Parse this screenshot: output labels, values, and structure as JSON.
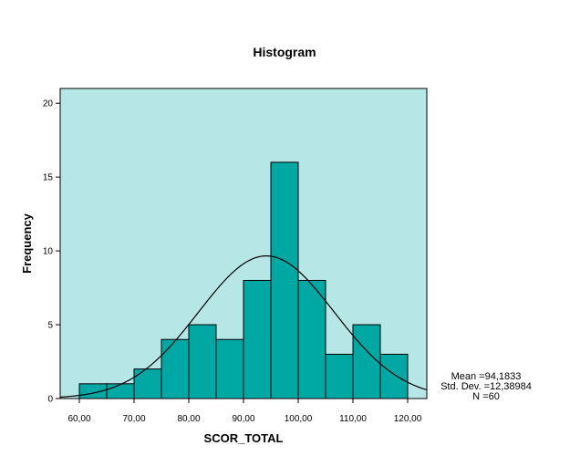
{
  "chart_data": {
    "type": "bar",
    "title": "Histogram",
    "xlabel": "SCOR_TOTAL",
    "ylabel": "Frequency",
    "bin_width": 5,
    "bin_starts": [
      60,
      65,
      70,
      75,
      80,
      85,
      90,
      95,
      100,
      105,
      110,
      115
    ],
    "values": [
      1,
      1,
      2,
      4,
      5,
      4,
      8,
      16,
      8,
      3,
      5,
      3
    ],
    "xlim": [
      56.5,
      123.5
    ],
    "ylim": [
      0,
      21
    ],
    "x_ticks": [
      {
        "value": 60,
        "label": "60,00"
      },
      {
        "value": 70,
        "label": "70,00"
      },
      {
        "value": 80,
        "label": "80,00"
      },
      {
        "value": 90,
        "label": "90,00"
      },
      {
        "value": 100,
        "label": "100,00"
      },
      {
        "value": 110,
        "label": "110,00"
      },
      {
        "value": 120,
        "label": "120,00"
      }
    ],
    "y_ticks": [
      {
        "value": 0,
        "label": "0"
      },
      {
        "value": 5,
        "label": "5"
      },
      {
        "value": 10,
        "label": "10"
      },
      {
        "value": 15,
        "label": "15"
      },
      {
        "value": 20,
        "label": "20"
      }
    ],
    "normal_curve": {
      "mean": 94.1833,
      "std": 12.38984,
      "n": 60
    },
    "grid": false,
    "colors": {
      "plot_background": "#b7e6e6",
      "bar_fill": "#00a8a4",
      "bar_stroke": "#000000",
      "curve": "#000000"
    }
  },
  "stats_box": {
    "mean_text": "Mean =94,1833",
    "std_text": "Std. Dev. =12,38984",
    "n_text": "N =60"
  }
}
